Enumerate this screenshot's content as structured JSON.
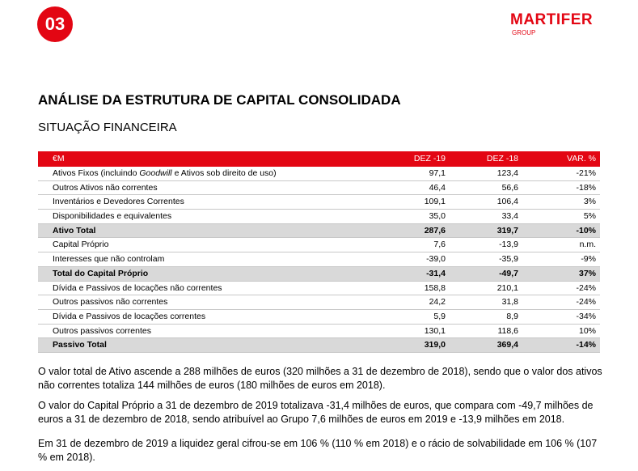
{
  "header": {
    "section_number": "03",
    "brand": "MARTIFER",
    "brand_sub": "GROUP"
  },
  "title": "ANÁLISE DA ESTRUTURA DE CAPITAL CONSOLIDADA",
  "subtitle": "SITUAÇÃO FINANCEIRA",
  "table": {
    "columns": [
      "€M",
      "DEZ -19",
      "DEZ -18",
      "VAR. %"
    ],
    "rows": [
      {
        "label": [
          "Ativos Fixos (incluindo ",
          "Goodwill",
          " e Ativos sob direito de uso)"
        ],
        "italic_part": 1,
        "cells": [
          "97,1",
          "123,4",
          "-21%"
        ]
      },
      {
        "label": [
          "Outros Ativos não correntes"
        ],
        "cells": [
          "46,4",
          "56,6",
          "-18%"
        ]
      },
      {
        "label": [
          "Inventários e Devedores Correntes"
        ],
        "cells": [
          "109,1",
          "106,4",
          "3%"
        ]
      },
      {
        "label": [
          "Disponibilidades e equivalentes"
        ],
        "cells": [
          "35,0",
          "33,4",
          "5%"
        ]
      },
      {
        "label": [
          "Ativo Total"
        ],
        "total": true,
        "cells": [
          "287,6",
          "319,7",
          "-10%"
        ]
      },
      {
        "label": [
          "Capital Próprio"
        ],
        "cells": [
          "7,6",
          "-13,9",
          "n.m."
        ]
      },
      {
        "label": [
          "Interesses que não controlam"
        ],
        "cells": [
          "-39,0",
          "-35,9",
          "-9%"
        ]
      },
      {
        "label": [
          "Total do Capital Próprio"
        ],
        "total": true,
        "cells": [
          "-31,4",
          "-49,7",
          "37%"
        ]
      },
      {
        "label": [
          "Dívida e Passivos de locações não correntes"
        ],
        "cells": [
          "158,8",
          "210,1",
          "-24%"
        ]
      },
      {
        "label": [
          "Outros passivos não correntes"
        ],
        "cells": [
          "24,2",
          "31,8",
          "-24%"
        ]
      },
      {
        "label": [
          "Dívida e Passivos de locações correntes"
        ],
        "cells": [
          "5,9",
          "8,9",
          "-34%"
        ]
      },
      {
        "label": [
          "Outros passivos correntes"
        ],
        "cells": [
          "130,1",
          "118,6",
          "10%"
        ]
      },
      {
        "label": [
          "Passivo Total"
        ],
        "total": true,
        "cells": [
          "319,0",
          "369,4",
          "-14%"
        ]
      }
    ]
  },
  "paragraphs": [
    "O valor total de Ativo ascende a 288 milhões de euros (320 milhões a 31 de dezembro de 2018), sendo que o valor dos ativos não correntes totaliza 144 milhões de euros (180 milhões de euros em 2018).",
    "O valor do Capital Próprio a 31 de dezembro de 2019 totalizava -31,4 milhões de euros, que compara com -49,7 milhões de euros a 31 de dezembro de 2018, sendo atribuível ao Grupo 7,6 milhões de euros em 2019 e -13,9 milhões em 2018.",
    "Em 31 de dezembro de 2019 a liquidez geral cifrou-se em 106 % (110 % em 2018) e o rácio de solvabilidade em 106 % (107 % em 2018)."
  ]
}
